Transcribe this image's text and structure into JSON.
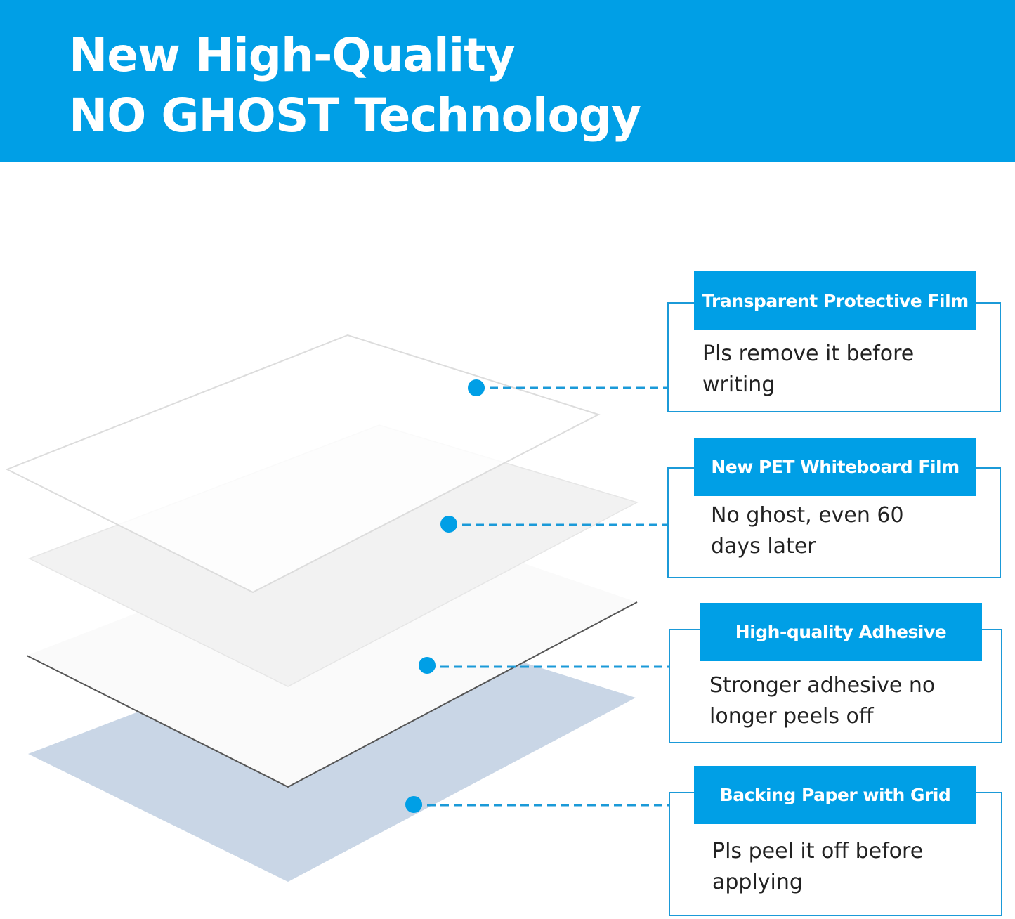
{
  "header": {
    "line1": "New High-Quality",
    "line2": "NO GHOST Technology"
  },
  "colors": {
    "accent": "#009fe6",
    "backing": "#c9d6e6"
  },
  "layers": [
    {
      "title": "Transparent Protective Film",
      "description": "Pls remove it before writing"
    },
    {
      "title": "New PET Whiteboard Film",
      "description": "No ghost, even 60 days later"
    },
    {
      "title": "High-quality Adhesive",
      "description": "Stronger adhesive no longer peels off"
    },
    {
      "title": "Backing Paper with Grid",
      "description": "Pls peel it off before applying"
    }
  ]
}
